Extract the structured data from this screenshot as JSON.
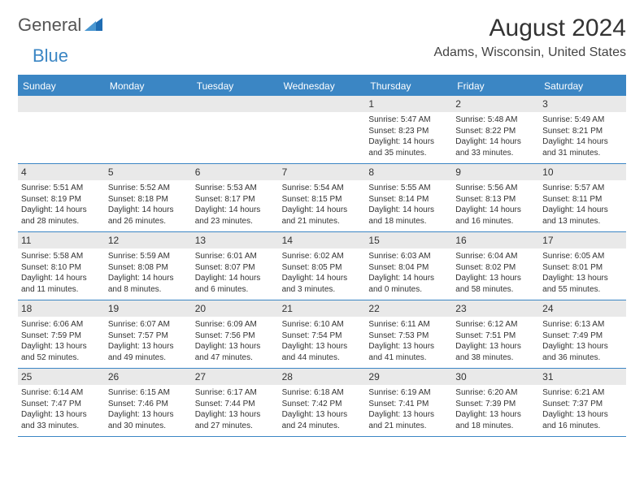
{
  "logo": {
    "word1": "General",
    "word2": "Blue",
    "triangle_color": "#1f6db3"
  },
  "title": "August 2024",
  "location": "Adams, Wisconsin, United States",
  "colors": {
    "header_bg": "#3b86c4",
    "header_text": "#ffffff",
    "daynum_bg": "#e9e9e9",
    "rule": "#3b86c4",
    "body_text": "#333333",
    "background": "#ffffff"
  },
  "day_names": [
    "Sunday",
    "Monday",
    "Tuesday",
    "Wednesday",
    "Thursday",
    "Friday",
    "Saturday"
  ],
  "weeks": [
    [
      {
        "blank": true
      },
      {
        "blank": true
      },
      {
        "blank": true
      },
      {
        "blank": true
      },
      {
        "day": 1,
        "sunrise": "5:47 AM",
        "sunset": "8:23 PM",
        "daylight": "14 hours and 35 minutes."
      },
      {
        "day": 2,
        "sunrise": "5:48 AM",
        "sunset": "8:22 PM",
        "daylight": "14 hours and 33 minutes."
      },
      {
        "day": 3,
        "sunrise": "5:49 AM",
        "sunset": "8:21 PM",
        "daylight": "14 hours and 31 minutes."
      }
    ],
    [
      {
        "day": 4,
        "sunrise": "5:51 AM",
        "sunset": "8:19 PM",
        "daylight": "14 hours and 28 minutes."
      },
      {
        "day": 5,
        "sunrise": "5:52 AM",
        "sunset": "8:18 PM",
        "daylight": "14 hours and 26 minutes."
      },
      {
        "day": 6,
        "sunrise": "5:53 AM",
        "sunset": "8:17 PM",
        "daylight": "14 hours and 23 minutes."
      },
      {
        "day": 7,
        "sunrise": "5:54 AM",
        "sunset": "8:15 PM",
        "daylight": "14 hours and 21 minutes."
      },
      {
        "day": 8,
        "sunrise": "5:55 AM",
        "sunset": "8:14 PM",
        "daylight": "14 hours and 18 minutes."
      },
      {
        "day": 9,
        "sunrise": "5:56 AM",
        "sunset": "8:13 PM",
        "daylight": "14 hours and 16 minutes."
      },
      {
        "day": 10,
        "sunrise": "5:57 AM",
        "sunset": "8:11 PM",
        "daylight": "14 hours and 13 minutes."
      }
    ],
    [
      {
        "day": 11,
        "sunrise": "5:58 AM",
        "sunset": "8:10 PM",
        "daylight": "14 hours and 11 minutes."
      },
      {
        "day": 12,
        "sunrise": "5:59 AM",
        "sunset": "8:08 PM",
        "daylight": "14 hours and 8 minutes."
      },
      {
        "day": 13,
        "sunrise": "6:01 AM",
        "sunset": "8:07 PM",
        "daylight": "14 hours and 6 minutes."
      },
      {
        "day": 14,
        "sunrise": "6:02 AM",
        "sunset": "8:05 PM",
        "daylight": "14 hours and 3 minutes."
      },
      {
        "day": 15,
        "sunrise": "6:03 AM",
        "sunset": "8:04 PM",
        "daylight": "14 hours and 0 minutes."
      },
      {
        "day": 16,
        "sunrise": "6:04 AM",
        "sunset": "8:02 PM",
        "daylight": "13 hours and 58 minutes."
      },
      {
        "day": 17,
        "sunrise": "6:05 AM",
        "sunset": "8:01 PM",
        "daylight": "13 hours and 55 minutes."
      }
    ],
    [
      {
        "day": 18,
        "sunrise": "6:06 AM",
        "sunset": "7:59 PM",
        "daylight": "13 hours and 52 minutes."
      },
      {
        "day": 19,
        "sunrise": "6:07 AM",
        "sunset": "7:57 PM",
        "daylight": "13 hours and 49 minutes."
      },
      {
        "day": 20,
        "sunrise": "6:09 AM",
        "sunset": "7:56 PM",
        "daylight": "13 hours and 47 minutes."
      },
      {
        "day": 21,
        "sunrise": "6:10 AM",
        "sunset": "7:54 PM",
        "daylight": "13 hours and 44 minutes."
      },
      {
        "day": 22,
        "sunrise": "6:11 AM",
        "sunset": "7:53 PM",
        "daylight": "13 hours and 41 minutes."
      },
      {
        "day": 23,
        "sunrise": "6:12 AM",
        "sunset": "7:51 PM",
        "daylight": "13 hours and 38 minutes."
      },
      {
        "day": 24,
        "sunrise": "6:13 AM",
        "sunset": "7:49 PM",
        "daylight": "13 hours and 36 minutes."
      }
    ],
    [
      {
        "day": 25,
        "sunrise": "6:14 AM",
        "sunset": "7:47 PM",
        "daylight": "13 hours and 33 minutes."
      },
      {
        "day": 26,
        "sunrise": "6:15 AM",
        "sunset": "7:46 PM",
        "daylight": "13 hours and 30 minutes."
      },
      {
        "day": 27,
        "sunrise": "6:17 AM",
        "sunset": "7:44 PM",
        "daylight": "13 hours and 27 minutes."
      },
      {
        "day": 28,
        "sunrise": "6:18 AM",
        "sunset": "7:42 PM",
        "daylight": "13 hours and 24 minutes."
      },
      {
        "day": 29,
        "sunrise": "6:19 AM",
        "sunset": "7:41 PM",
        "daylight": "13 hours and 21 minutes."
      },
      {
        "day": 30,
        "sunrise": "6:20 AM",
        "sunset": "7:39 PM",
        "daylight": "13 hours and 18 minutes."
      },
      {
        "day": 31,
        "sunrise": "6:21 AM",
        "sunset": "7:37 PM",
        "daylight": "13 hours and 16 minutes."
      }
    ]
  ],
  "labels": {
    "sunrise": "Sunrise:",
    "sunset": "Sunset:",
    "daylight": "Daylight:"
  }
}
